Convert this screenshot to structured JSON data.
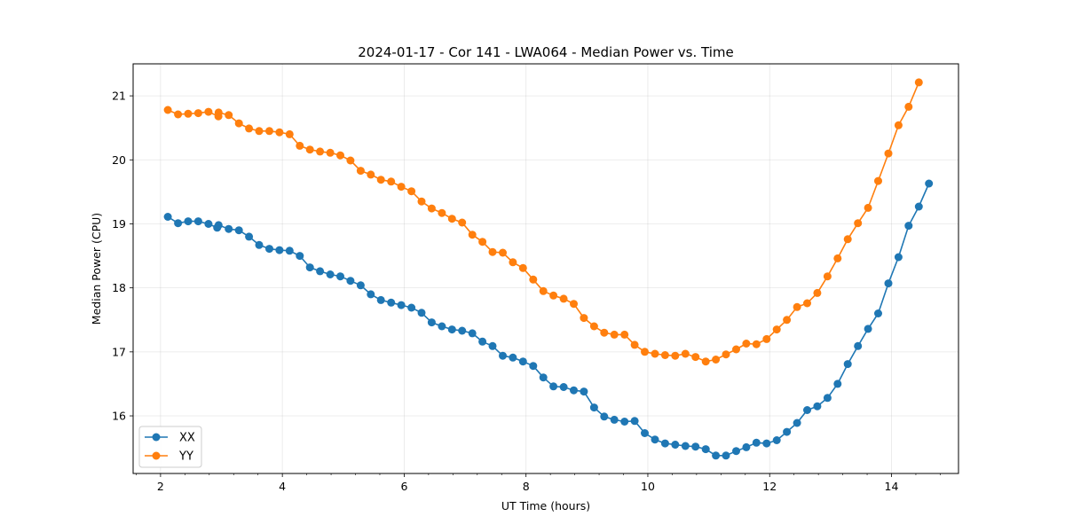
{
  "chart_data": {
    "type": "line",
    "title": "2024-01-17 - Cor 141 - LWA064 - Median Power vs. Time",
    "xlabel": "UT Time (hours)",
    "ylabel": "Median Power (CPU)",
    "xlim": [
      1.55,
      15.1
    ],
    "ylim": [
      15.1,
      21.5
    ],
    "grid": true,
    "legend_location": "lower-left",
    "xticks": [
      2,
      4,
      6,
      8,
      10,
      12,
      14
    ],
    "xtick_labels": [
      "2",
      "4",
      "6",
      "8",
      "10",
      "12",
      "14"
    ],
    "x_minor_step": 0.4,
    "yticks": [
      16,
      17,
      18,
      19,
      20,
      21
    ],
    "ytick_labels": [
      "16",
      "17",
      "18",
      "19",
      "20",
      "21"
    ],
    "x_start": 2.12,
    "x_step": 0.1666,
    "series": [
      {
        "name": "XX",
        "color": "#1f77b4",
        "values": [
          19.11,
          19.01,
          19.04,
          19.04,
          19.0,
          18.98,
          18.92,
          18.9,
          18.8,
          18.67,
          18.61,
          18.59,
          18.58,
          18.5,
          18.32,
          18.26,
          18.21,
          18.18,
          18.11,
          18.04,
          17.9,
          17.81,
          17.77,
          17.73,
          17.69,
          17.61,
          17.46,
          17.4,
          17.35,
          17.33,
          17.29,
          17.16,
          17.09,
          16.94,
          16.91,
          16.85,
          16.78,
          16.6,
          16.46,
          16.45,
          16.4,
          16.38,
          16.13,
          15.99,
          15.94,
          15.91,
          15.92,
          15.73,
          15.63,
          15.57,
          15.55,
          15.53,
          15.52,
          15.48,
          15.38,
          15.38,
          15.45,
          15.51,
          15.58,
          15.57,
          15.62,
          15.75,
          15.89,
          16.09,
          16.15,
          16.28,
          16.5,
          16.81,
          17.09,
          17.36,
          17.6,
          18.07,
          18.48,
          18.97,
          19.27,
          19.63
        ],
        "extra_points": [
          {
            "x": 2.93,
            "y": 18.94
          }
        ]
      },
      {
        "name": "YY",
        "color": "#ff7f0e",
        "values": [
          20.78,
          20.71,
          20.72,
          20.73,
          20.75,
          20.74,
          20.7,
          20.57,
          20.49,
          20.45,
          20.45,
          20.43,
          20.4,
          20.22,
          20.16,
          20.13,
          20.11,
          20.07,
          19.99,
          19.83,
          19.77,
          19.69,
          19.66,
          19.58,
          19.51,
          19.35,
          19.24,
          19.17,
          19.08,
          19.02,
          18.83,
          18.72,
          18.56,
          18.55,
          18.4,
          18.31,
          18.13,
          17.95,
          17.88,
          17.83,
          17.75,
          17.53,
          17.4,
          17.3,
          17.27,
          17.27,
          17.11,
          17.0,
          16.97,
          16.95,
          16.94,
          16.97,
          16.92,
          16.85,
          16.88,
          16.96,
          17.04,
          17.13,
          17.12,
          17.2,
          17.35,
          17.5,
          17.7,
          17.76,
          17.92,
          18.18,
          18.46,
          18.76,
          19.01,
          19.25,
          19.67,
          20.1,
          20.54,
          20.83,
          21.21
        ],
        "extra_points": [
          {
            "x": 2.95,
            "y": 20.68
          }
        ]
      }
    ]
  }
}
